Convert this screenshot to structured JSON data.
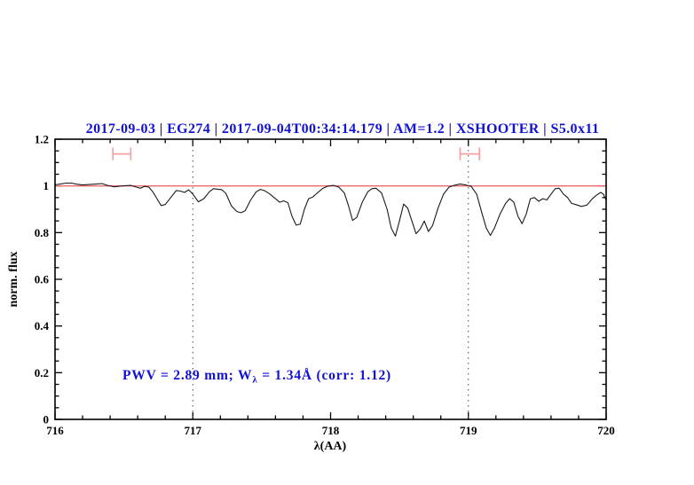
{
  "annotation": {
    "part1": "PWV = 2.89 mm; W",
    "sub": "λ",
    "part2": " = 1.34Å (corr: 1.12)",
    "full_text": "PWV = 2.89 mm; Wλ = 1.34Å (corr: 1.12)"
  },
  "chart_data": {
    "type": "line",
    "title": "2017-09-03 | EG274 | 2017-09-04T00:34:14.179 | AM=1.2 | XSHOOTER | S5.0x11",
    "xlabel": "λ(AA)",
    "ylabel": "norm. flux",
    "xlim": [
      716,
      720
    ],
    "ylim": [
      0,
      1.2
    ],
    "x_tick_values": [
      716,
      717,
      718,
      719,
      720
    ],
    "x_tick_labels": [
      "716",
      "717",
      "718",
      "719",
      "720"
    ],
    "x_minor_step": 0.2,
    "y_tick_values": [
      0,
      0.2,
      0.4,
      0.6,
      0.8,
      1,
      1.2
    ],
    "y_tick_labels": [
      "0",
      "0.2",
      "0.4",
      "0.6",
      "0.8",
      "1",
      "1.2"
    ],
    "y_minor_step": 0.05,
    "grid": "off",
    "legend": "none",
    "continuum_y": 1.0,
    "dotted_line_x": [
      717,
      719
    ],
    "telluric_markers": [
      {
        "x1": 716.42,
        "x2": 716.55,
        "y": 1.137,
        "cap_half_height": 0.027
      },
      {
        "x1": 718.94,
        "x2": 719.08,
        "y": 1.137,
        "cap_half_height": 0.027
      }
    ],
    "colors": {
      "title_text": "#1212d6",
      "annotation_text": "#1212d6",
      "continuum_line": "#ee6a6a",
      "marker": "#f4a2a2",
      "spectrum": "#1a1a1a",
      "dotted_line": "#444444",
      "axis": "#000000"
    },
    "series": [
      {
        "name": "normalized spectrum",
        "points": [
          [
            716.0,
            1.005
          ],
          [
            716.04,
            1.008
          ],
          [
            716.08,
            1.012
          ],
          [
            716.12,
            1.012
          ],
          [
            716.16,
            1.007
          ],
          [
            716.2,
            1.004
          ],
          [
            716.25,
            1.006
          ],
          [
            716.3,
            1.008
          ],
          [
            716.34,
            1.01
          ],
          [
            716.38,
            1.002
          ],
          [
            716.43,
            0.996
          ],
          [
            716.47,
            0.999
          ],
          [
            716.51,
            1.001
          ],
          [
            716.55,
            1.002
          ],
          [
            716.59,
            0.995
          ],
          [
            716.62,
            0.99
          ],
          [
            716.65,
            0.998
          ],
          [
            716.68,
            0.995
          ],
          [
            716.71,
            0.975
          ],
          [
            716.74,
            0.945
          ],
          [
            716.77,
            0.916
          ],
          [
            716.8,
            0.92
          ],
          [
            716.84,
            0.95
          ],
          [
            716.88,
            0.98
          ],
          [
            716.91,
            0.978
          ],
          [
            716.94,
            0.972
          ],
          [
            716.97,
            0.983
          ],
          [
            717.0,
            0.965
          ],
          [
            717.04,
            0.932
          ],
          [
            717.08,
            0.945
          ],
          [
            717.12,
            0.975
          ],
          [
            717.15,
            0.988
          ],
          [
            717.18,
            0.986
          ],
          [
            717.21,
            0.984
          ],
          [
            717.24,
            0.968
          ],
          [
            717.28,
            0.915
          ],
          [
            717.32,
            0.89
          ],
          [
            717.35,
            0.885
          ],
          [
            717.38,
            0.893
          ],
          [
            717.42,
            0.94
          ],
          [
            717.46,
            0.975
          ],
          [
            717.49,
            0.985
          ],
          [
            717.52,
            0.98
          ],
          [
            717.56,
            0.965
          ],
          [
            717.6,
            0.945
          ],
          [
            717.63,
            0.93
          ],
          [
            717.66,
            0.936
          ],
          [
            717.69,
            0.928
          ],
          [
            717.72,
            0.87
          ],
          [
            717.75,
            0.832
          ],
          [
            717.78,
            0.836
          ],
          [
            717.81,
            0.9
          ],
          [
            717.84,
            0.945
          ],
          [
            717.87,
            0.952
          ],
          [
            717.9,
            0.968
          ],
          [
            717.94,
            0.988
          ],
          [
            717.98,
            0.999
          ],
          [
            718.02,
            1.002
          ],
          [
            718.06,
            0.995
          ],
          [
            718.1,
            0.97
          ],
          [
            718.13,
            0.915
          ],
          [
            718.16,
            0.852
          ],
          [
            718.19,
            0.865
          ],
          [
            718.23,
            0.93
          ],
          [
            718.27,
            0.975
          ],
          [
            718.3,
            0.988
          ],
          [
            718.33,
            0.99
          ],
          [
            718.37,
            0.97
          ],
          [
            718.41,
            0.9
          ],
          [
            718.44,
            0.82
          ],
          [
            718.47,
            0.785
          ],
          [
            718.5,
            0.85
          ],
          [
            718.53,
            0.922
          ],
          [
            718.56,
            0.905
          ],
          [
            718.59,
            0.85
          ],
          [
            718.62,
            0.795
          ],
          [
            718.65,
            0.815
          ],
          [
            718.68,
            0.85
          ],
          [
            718.71,
            0.805
          ],
          [
            718.74,
            0.83
          ],
          [
            718.78,
            0.905
          ],
          [
            718.82,
            0.965
          ],
          [
            718.86,
            0.995
          ],
          [
            718.9,
            1.003
          ],
          [
            718.94,
            1.008
          ],
          [
            718.98,
            1.004
          ],
          [
            719.02,
            0.998
          ],
          [
            719.06,
            0.965
          ],
          [
            719.1,
            0.88
          ],
          [
            719.13,
            0.82
          ],
          [
            719.16,
            0.788
          ],
          [
            719.19,
            0.82
          ],
          [
            719.23,
            0.88
          ],
          [
            719.27,
            0.925
          ],
          [
            719.3,
            0.945
          ],
          [
            719.33,
            0.93
          ],
          [
            719.36,
            0.87
          ],
          [
            719.39,
            0.838
          ],
          [
            719.42,
            0.88
          ],
          [
            719.45,
            0.945
          ],
          [
            719.48,
            0.95
          ],
          [
            719.51,
            0.934
          ],
          [
            719.54,
            0.945
          ],
          [
            719.57,
            0.94
          ],
          [
            719.6,
            0.965
          ],
          [
            719.63,
            0.988
          ],
          [
            719.66,
            0.99
          ],
          [
            719.69,
            0.965
          ],
          [
            719.72,
            0.95
          ],
          [
            719.75,
            0.925
          ],
          [
            719.78,
            0.92
          ],
          [
            719.82,
            0.912
          ],
          [
            719.86,
            0.918
          ],
          [
            719.9,
            0.945
          ],
          [
            719.93,
            0.96
          ],
          [
            719.96,
            0.972
          ],
          [
            719.98,
            0.965
          ],
          [
            720.0,
            0.938
          ]
        ]
      }
    ]
  }
}
